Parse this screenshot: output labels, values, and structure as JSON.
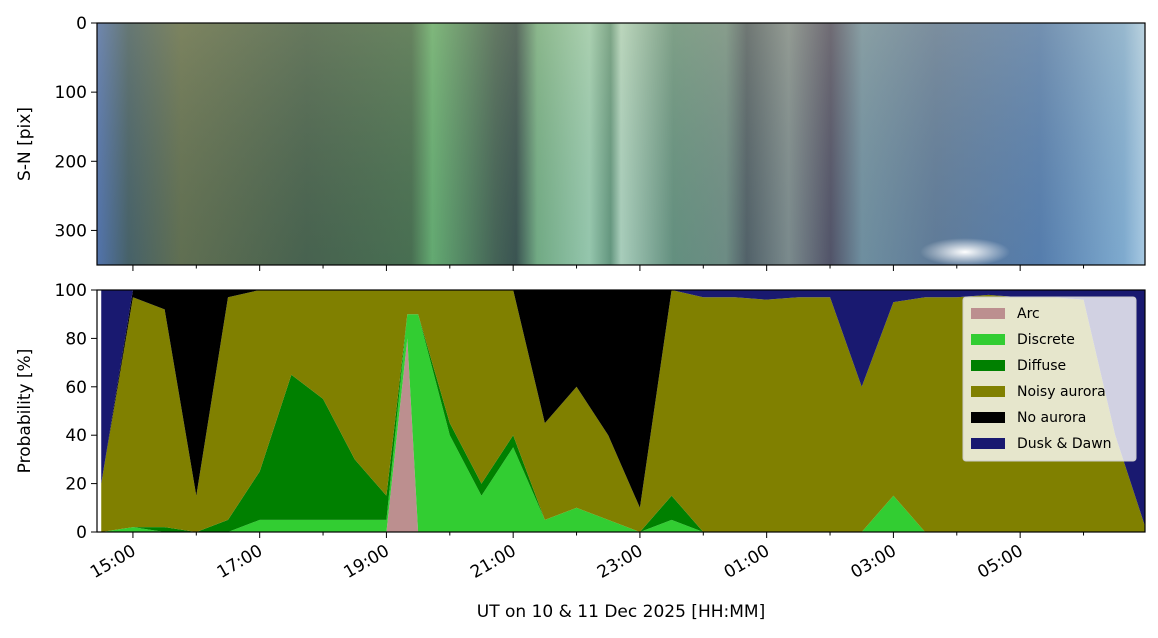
{
  "chart_data": [
    {
      "type": "image",
      "ylabel": "S-N [pix]",
      "ylim": [
        350,
        0
      ],
      "yticks": [
        0,
        100,
        200,
        300
      ],
      "xlim": [
        14.433,
        30.97
      ],
      "xticks": [
        {
          "value": 15,
          "label": "15:00"
        },
        {
          "value": 17,
          "label": "17:00"
        },
        {
          "value": 19,
          "label": "19:00"
        },
        {
          "value": 21,
          "label": "21:00"
        },
        {
          "value": 23,
          "label": "23:00"
        },
        {
          "value": 25,
          "label": "01:00"
        },
        {
          "value": 27,
          "label": "03:00"
        },
        {
          "value": 29,
          "label": "05:00"
        }
      ],
      "xminorticks": [
        16,
        18,
        20,
        22,
        24,
        26,
        28,
        30
      ]
    },
    {
      "type": "stackedarea",
      "xlabel": "UT on 10 & 11 Dec 2025 [HH:MM]",
      "ylabel": "Probability [%]",
      "xlim": [
        14.433,
        30.97
      ],
      "ylim": [
        0,
        100
      ],
      "yticks": [
        0,
        20,
        40,
        60,
        80,
        100
      ],
      "xticks": [
        {
          "value": 15,
          "label": "15:00"
        },
        {
          "value": 17,
          "label": "17:00"
        },
        {
          "value": 19,
          "label": "19:00"
        },
        {
          "value": 21,
          "label": "21:00"
        },
        {
          "value": 23,
          "label": "23:00"
        },
        {
          "value": 25,
          "label": "01:00"
        },
        {
          "value": 27,
          "label": "03:00"
        },
        {
          "value": 29,
          "label": "05:00"
        }
      ],
      "xminorticks": [
        16,
        18,
        20,
        22,
        24,
        26,
        28,
        30
      ],
      "legend": "upper right",
      "x": [
        14.5,
        15,
        15.5,
        16,
        16.5,
        17,
        17.5,
        18,
        18.5,
        19,
        19.33,
        19.5,
        20,
        20.5,
        21,
        21.5,
        22,
        22.5,
        23,
        23.5,
        24,
        24.5,
        25,
        25.5,
        26,
        26.5,
        27,
        27.5,
        28,
        28.5,
        29,
        29.5,
        30,
        30.5,
        31
      ],
      "series": [
        {
          "name": "Arc",
          "color": "#bc8f8f",
          "values": [
            0,
            0,
            0,
            0,
            0,
            0,
            0,
            0,
            0,
            0,
            80,
            0,
            0,
            0,
            0,
            0,
            0,
            0,
            0,
            0,
            0,
            0,
            0,
            0,
            0,
            0,
            0,
            0,
            0,
            0,
            0,
            0,
            0,
            0,
            0
          ]
        },
        {
          "name": "Discrete",
          "color": "#32cd32",
          "values": [
            0,
            2,
            0,
            0,
            0,
            5,
            5,
            5,
            5,
            5,
            10,
            90,
            40,
            15,
            35,
            5,
            10,
            5,
            0,
            5,
            0,
            0,
            0,
            0,
            0,
            0,
            15,
            0,
            0,
            0,
            0,
            0,
            0,
            0,
            0
          ]
        },
        {
          "name": "Diffuse",
          "color": "#008000",
          "values": [
            0,
            0,
            2,
            0,
            5,
            20,
            60,
            50,
            25,
            10,
            0,
            0,
            5,
            5,
            5,
            0,
            0,
            0,
            0,
            10,
            0,
            0,
            0,
            0,
            0,
            0,
            0,
            0,
            0,
            0,
            0,
            0,
            0,
            0,
            0
          ]
        },
        {
          "name": "Noisy aurora",
          "color": "#808000",
          "values": [
            20,
            95,
            90,
            15,
            92,
            75,
            35,
            45,
            70,
            85,
            10,
            10,
            55,
            80,
            60,
            40,
            50,
            35,
            10,
            85,
            97,
            97,
            96,
            97,
            97,
            60,
            80,
            97,
            97,
            98,
            97,
            97,
            96,
            40,
            0
          ]
        },
        {
          "name": "No aurora",
          "color": "#000000",
          "values": [
            0,
            3,
            8,
            85,
            3,
            0,
            0,
            0,
            0,
            0,
            0,
            0,
            0,
            0,
            0,
            55,
            40,
            60,
            90,
            0,
            0,
            0,
            0,
            0,
            0,
            0,
            0,
            0,
            0,
            0,
            0,
            0,
            0,
            0,
            0
          ]
        },
        {
          "name": "Dusk & Dawn",
          "color": "#191970",
          "values": [
            80,
            0,
            0,
            0,
            0,
            0,
            0,
            0,
            0,
            0,
            0,
            0,
            0,
            0,
            0,
            0,
            0,
            0,
            0,
            0,
            3,
            3,
            4,
            3,
            3,
            40,
            5,
            3,
            3,
            2,
            3,
            3,
            4,
            60,
            100
          ]
        }
      ]
    }
  ]
}
